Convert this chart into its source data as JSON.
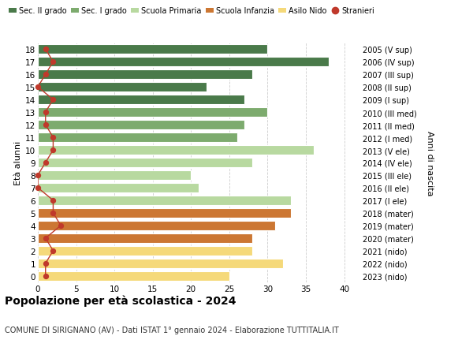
{
  "ages": [
    18,
    17,
    16,
    15,
    14,
    13,
    12,
    11,
    10,
    9,
    8,
    7,
    6,
    5,
    4,
    3,
    2,
    1,
    0
  ],
  "values": [
    30,
    38,
    28,
    22,
    27,
    30,
    27,
    26,
    36,
    28,
    20,
    21,
    33,
    33,
    31,
    28,
    28,
    32,
    25
  ],
  "stranieri": [
    1,
    2,
    1,
    0,
    2,
    1,
    1,
    2,
    2,
    1,
    0,
    0,
    2,
    2,
    3,
    1,
    2,
    1,
    1
  ],
  "right_labels": [
    "2005 (V sup)",
    "2006 (IV sup)",
    "2007 (III sup)",
    "2008 (II sup)",
    "2009 (I sup)",
    "2010 (III med)",
    "2011 (II med)",
    "2012 (I med)",
    "2013 (V ele)",
    "2014 (IV ele)",
    "2015 (III ele)",
    "2016 (II ele)",
    "2017 (I ele)",
    "2018 (mater)",
    "2019 (mater)",
    "2020 (mater)",
    "2021 (nido)",
    "2022 (nido)",
    "2023 (nido)"
  ],
  "bar_colors": [
    "#4a7a4a",
    "#4a7a4a",
    "#4a7a4a",
    "#4a7a4a",
    "#4a7a4a",
    "#7dab6e",
    "#7dab6e",
    "#7dab6e",
    "#b8d9a0",
    "#b8d9a0",
    "#b8d9a0",
    "#b8d9a0",
    "#b8d9a0",
    "#cc7733",
    "#cc7733",
    "#cc7733",
    "#f5d97a",
    "#f5d97a",
    "#f5d97a"
  ],
  "legend_labels": [
    "Sec. II grado",
    "Sec. I grado",
    "Scuola Primaria",
    "Scuola Infanzia",
    "Asilo Nido",
    "Stranieri"
  ],
  "legend_colors": [
    "#4a7a4a",
    "#7dab6e",
    "#b8d9a0",
    "#cc7733",
    "#f5d97a",
    "#c0392b"
  ],
  "stranieri_color": "#c0392b",
  "title": "Popolazione per età scolastica - 2024",
  "subtitle": "COMUNE DI SIRIGNANO (AV) - Dati ISTAT 1° gennaio 2024 - Elaborazione TUTTITALIA.IT",
  "ylabel_left": "Età alunni",
  "ylabel_right": "Anni di nascita",
  "xlim": [
    0,
    42
  ],
  "xticks": [
    0,
    5,
    10,
    15,
    20,
    25,
    30,
    35,
    40
  ],
  "bg_color": "#ffffff",
  "grid_color": "#cccccc"
}
